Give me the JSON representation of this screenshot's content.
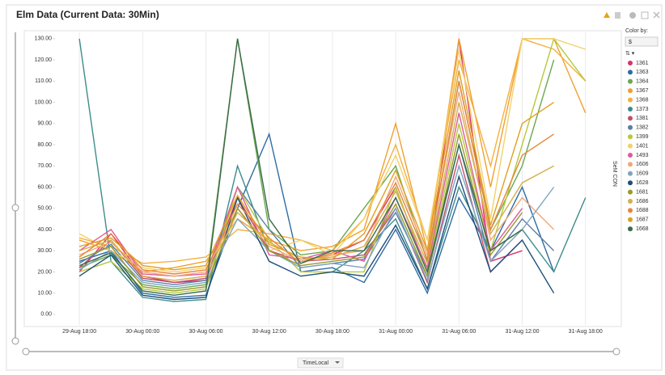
{
  "chart_data": {
    "type": "line",
    "title": "Elm Data (Current Data: 30Min)",
    "x_label": "TimeLocal",
    "y_label": "SeM CON",
    "legend_title": "Color by:",
    "color_by": "$",
    "categories": [
      null,
      "29-Aug 18:00",
      null,
      "30-Aug 00:00",
      null,
      "30-Aug 06:00",
      null,
      "30-Aug 12:00",
      null,
      "30-Aug 18:00",
      null,
      "31-Aug 00:00",
      null,
      "31-Aug 06:00",
      null,
      "31-Aug 12:00",
      null,
      "31-Aug 18:00",
      null
    ],
    "ylim": [
      -5,
      133
    ],
    "yticks": [
      {
        "value": 0,
        "label": "0.00"
      },
      {
        "value": 10,
        "label": "10.00"
      },
      {
        "value": 20,
        "label": "20.00"
      },
      {
        "value": 30,
        "label": "30.00"
      },
      {
        "value": 40,
        "label": "40.00"
      },
      {
        "value": 50,
        "label": "50.00"
      },
      {
        "value": 60,
        "label": "60.00"
      },
      {
        "value": 70,
        "label": "70.00"
      },
      {
        "value": 80,
        "label": "80.00"
      },
      {
        "value": 90,
        "label": "90.00"
      },
      {
        "value": 100,
        "label": "100.00"
      },
      {
        "value": 110,
        "label": "110.00"
      },
      {
        "value": 120,
        "label": "120.00"
      },
      {
        "value": 130,
        "label": "130.00"
      }
    ],
    "grid": true,
    "series": [
      {
        "name": "1361",
        "color": "#d6336c",
        "values": [
          null,
          20,
          38,
          18,
          15,
          16,
          55,
          30,
          25,
          28,
          35,
          60,
          20,
          130,
          25,
          30,
          null,
          null,
          null
        ]
      },
      {
        "name": "1363",
        "color": "#2e6ca4",
        "values": [
          null,
          25,
          30,
          10,
          8,
          9,
          50,
          85,
          20,
          22,
          15,
          40,
          10,
          55,
          30,
          60,
          20,
          null,
          null
        ]
      },
      {
        "name": "1364",
        "color": "#6aa84f",
        "values": [
          null,
          22,
          28,
          14,
          12,
          14,
          130,
          40,
          28,
          30,
          50,
          70,
          25,
          110,
          40,
          70,
          120,
          null,
          null
        ]
      },
      {
        "name": "1367",
        "color": "#f0a030",
        "values": [
          null,
          35,
          30,
          20,
          22,
          25,
          45,
          35,
          30,
          32,
          40,
          90,
          30,
          130,
          60,
          130,
          130,
          95,
          null
        ]
      },
      {
        "name": "1368",
        "color": "#f5b041",
        "values": [
          null,
          36,
          32,
          24,
          25,
          27,
          40,
          38,
          35,
          30,
          45,
          80,
          35,
          120,
          70,
          130,
          125,
          110,
          null
        ]
      },
      {
        "name": "1373",
        "color": "#3d8c8c",
        "values": [
          null,
          130,
          25,
          8,
          6,
          7,
          70,
          30,
          null,
          20,
          30,
          45,
          12,
          60,
          30,
          40,
          20,
          55,
          null
        ]
      },
      {
        "name": "1381",
        "color": "#c0506b",
        "values": [
          null,
          22,
          35,
          17,
          15,
          17,
          55,
          30,
          25,
          26,
          28,
          50,
          15,
          75,
          20,
          35,
          null,
          null,
          null
        ]
      },
      {
        "name": "1382",
        "color": "#5a7fa8",
        "values": [
          null,
          24,
          33,
          16,
          14,
          16,
          60,
          40,
          22,
          24,
          26,
          48,
          18,
          80,
          25,
          45,
          30,
          null,
          null
        ]
      },
      {
        "name": "1399",
        "color": "#b5c93a",
        "values": [
          null,
          20,
          25,
          12,
          10,
          12,
          60,
          35,
          20,
          20,
          20,
          60,
          20,
          90,
          30,
          80,
          130,
          110,
          null
        ]
      },
      {
        "name": "1401",
        "color": "#f2d16b",
        "values": [
          null,
          38,
          30,
          22,
          20,
          22,
          45,
          30,
          35,
          28,
          45,
          75,
          35,
          125,
          45,
          130,
          130,
          125,
          null
        ]
      },
      {
        "name": "1493",
        "color": "#e05a9a",
        "values": [
          null,
          30,
          40,
          19,
          18,
          19,
          60,
          28,
          26,
          30,
          25,
          55,
          22,
          95,
          30,
          50,
          null,
          null,
          null
        ]
      },
      {
        "name": "1606",
        "color": "#f0a878",
        "values": [
          null,
          28,
          34,
          20,
          18,
          20,
          50,
          32,
          25,
          28,
          30,
          65,
          28,
          105,
          35,
          55,
          40,
          null,
          null
        ]
      },
      {
        "name": "1609",
        "color": "#7fa5c0",
        "values": [
          null,
          21,
          30,
          15,
          13,
          15,
          45,
          30,
          22,
          24,
          22,
          50,
          16,
          70,
          25,
          40,
          60,
          null,
          null
        ]
      },
      {
        "name": "1628",
        "color": "#1f4e79",
        "values": [
          null,
          18,
          28,
          9,
          7,
          8,
          55,
          25,
          18,
          20,
          18,
          42,
          12,
          65,
          20,
          35,
          10,
          null,
          null
        ]
      },
      {
        "name": "1681",
        "color": "#9a9a2a",
        "values": [
          null,
          26,
          32,
          13,
          11,
          13,
          50,
          30,
          23,
          25,
          27,
          52,
          18,
          85,
          28,
          48,
          null,
          null,
          null
        ]
      },
      {
        "name": "1686",
        "color": "#d4b04a",
        "values": [
          null,
          30,
          35,
          18,
          16,
          18,
          48,
          34,
          26,
          27,
          32,
          58,
          24,
          100,
          38,
          62,
          70,
          null,
          null
        ]
      },
      {
        "name": "1688",
        "color": "#e8853a",
        "values": [
          null,
          27,
          38,
          21,
          19,
          21,
          52,
          36,
          24,
          29,
          35,
          62,
          26,
          110,
          40,
          75,
          85,
          null,
          null
        ]
      },
      {
        "name": "1687",
        "color": "#e0a020",
        "values": [
          null,
          32,
          36,
          23,
          21,
          23,
          56,
          33,
          27,
          26,
          38,
          68,
          30,
          115,
          42,
          90,
          100,
          null,
          null
        ]
      },
      {
        "name": "1668",
        "color": "#3a6b4a",
        "values": [
          null,
          23,
          29,
          11,
          9,
          11,
          130,
          45,
          24,
          30,
          30,
          55,
          20,
          80,
          30,
          40,
          null,
          null,
          null
        ]
      }
    ]
  }
}
